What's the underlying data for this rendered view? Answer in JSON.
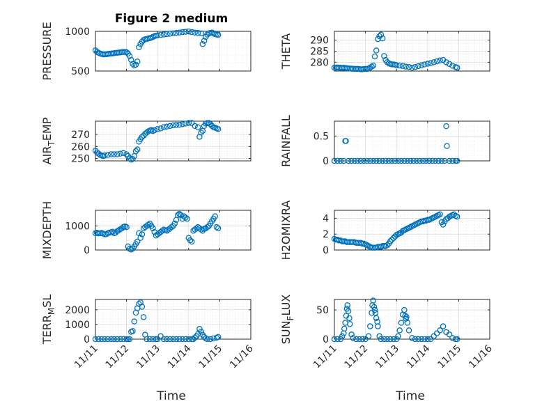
{
  "figure_title": "Figure 2 medium",
  "colors": {
    "marker": "#0072BD",
    "axes": "#262626"
  },
  "x_ticks": [
    "11/11",
    "11/12",
    "11/13",
    "11/14",
    "11/15",
    "11/16"
  ],
  "x_label": "Time",
  "chart_data": [
    {
      "type": "scatter",
      "ylabel": "PRESSURE",
      "ylim": [
        500,
        1000
      ],
      "yticks": [
        500,
        1000
      ],
      "x": [
        11.0,
        11.05,
        11.1,
        11.15,
        11.2,
        11.25,
        11.3,
        11.35,
        11.4,
        11.45,
        11.5,
        11.55,
        11.6,
        11.65,
        11.7,
        11.75,
        11.8,
        11.85,
        11.9,
        11.95,
        12.0,
        12.05,
        12.1,
        12.15,
        12.2,
        12.25,
        12.3,
        12.35,
        12.4,
        12.45,
        12.5,
        12.55,
        12.6,
        12.65,
        12.7,
        12.75,
        12.8,
        12.85,
        12.9,
        12.95,
        13.0,
        13.1,
        13.2,
        13.3,
        13.4,
        13.5,
        13.6,
        13.7,
        13.8,
        13.9,
        14.0,
        14.1,
        14.2,
        14.3,
        14.4,
        14.45,
        14.5,
        14.55,
        14.6,
        14.65,
        14.7,
        14.75,
        14.8,
        14.85,
        14.9,
        14.95
      ],
      "y": [
        760,
        740,
        730,
        720,
        715,
        710,
        710,
        712,
        715,
        718,
        720,
        722,
        725,
        728,
        730,
        732,
        735,
        738,
        740,
        740,
        738,
        720,
        690,
        640,
        590,
        570,
        580,
        620,
        800,
        840,
        870,
        890,
        900,
        905,
        910,
        915,
        920,
        930,
        940,
        945,
        950,
        955,
        960,
        965,
        970,
        975,
        980,
        985,
        990,
        995,
        998,
        990,
        985,
        980,
        975,
        840,
        880,
        930,
        960,
        975,
        980,
        985,
        975,
        965,
        960,
        955
      ],
      "grid_minor": true
    },
    {
      "type": "scatter",
      "ylabel": "THETA",
      "ylim": [
        276,
        294
      ],
      "yticks": [
        280,
        285,
        290
      ],
      "x": [
        11.0,
        11.05,
        11.1,
        11.15,
        11.2,
        11.25,
        11.3,
        11.35,
        11.4,
        11.45,
        11.5,
        11.55,
        11.6,
        11.65,
        11.7,
        11.75,
        11.8,
        11.85,
        11.9,
        11.95,
        12.0,
        12.05,
        12.1,
        12.15,
        12.2,
        12.25,
        12.3,
        12.35,
        12.4,
        12.45,
        12.5,
        12.55,
        12.6,
        12.65,
        12.7,
        12.75,
        12.8,
        12.85,
        12.9,
        12.95,
        13.0,
        13.1,
        13.2,
        13.3,
        13.4,
        13.5,
        13.6,
        13.7,
        13.8,
        13.9,
        14.0,
        14.1,
        14.2,
        14.3,
        14.4,
        14.5,
        14.6,
        14.7,
        14.8,
        14.9,
        14.95
      ],
      "y": [
        277.5,
        277.5,
        277.6,
        277.5,
        277.5,
        277.4,
        277.5,
        277.4,
        277.3,
        277.2,
        277.1,
        277.1,
        277.0,
        277.0,
        277.0,
        277.0,
        276.9,
        276.8,
        276.8,
        276.9,
        277.0,
        276.9,
        277.2,
        277.5,
        278.0,
        278.5,
        282.6,
        285.3,
        290.5,
        291.8,
        292.5,
        290.8,
        282.8,
        281.0,
        280.0,
        279.5,
        279.2,
        279.0,
        279.0,
        278.9,
        278.6,
        278.5,
        278.3,
        278.0,
        277.8,
        277.5,
        277.8,
        278.2,
        278.6,
        279.0,
        279.3,
        279.6,
        280.0,
        280.4,
        280.8,
        281.0,
        280.0,
        279.2,
        278.4,
        277.8,
        277.5
      ],
      "grid_minor": true
    },
    {
      "type": "scatter",
      "ylabel": "AIR_TEMP",
      "ylim": [
        248,
        281
      ],
      "yticks": [
        250,
        260,
        270
      ],
      "x": [
        11.0,
        11.05,
        11.1,
        11.15,
        11.2,
        11.25,
        11.3,
        11.4,
        11.5,
        11.6,
        11.7,
        11.8,
        11.9,
        12.0,
        12.05,
        12.1,
        12.15,
        12.2,
        12.25,
        12.3,
        12.35,
        12.4,
        12.45,
        12.5,
        12.55,
        12.6,
        12.65,
        12.7,
        12.75,
        12.8,
        12.85,
        12.9,
        13.0,
        13.1,
        13.2,
        13.3,
        13.4,
        13.5,
        13.6,
        13.7,
        13.8,
        13.9,
        14.0,
        14.1,
        14.2,
        14.3,
        14.35,
        14.4,
        14.45,
        14.5,
        14.55,
        14.6,
        14.65,
        14.7,
        14.75,
        14.8,
        14.85,
        14.9,
        14.95
      ],
      "y": [
        256.5,
        255,
        254,
        253,
        252.5,
        252,
        252.5,
        253,
        253.5,
        253.5,
        253.5,
        254,
        254.5,
        253.5,
        252,
        250,
        249,
        249.5,
        252,
        256,
        257.5,
        264,
        266,
        268,
        269,
        270.5,
        271.5,
        272.5,
        273.2,
        273.6,
        272.8,
        273.5,
        274.5,
        275,
        276,
        276.5,
        277,
        277.5,
        277.8,
        278,
        278.5,
        279,
        279.5,
        279.5,
        277,
        276,
        268,
        271.5,
        273,
        277,
        279,
        279.5,
        279.5,
        278.5,
        277,
        276,
        275.5,
        275,
        274.5
      ],
      "grid_minor": true
    },
    {
      "type": "scatter",
      "ylabel": "RAINFALL",
      "ylim": [
        0,
        0.8
      ],
      "yticks": [
        0,
        0.5
      ],
      "x": [
        11.0,
        11.1,
        11.2,
        11.3,
        11.35,
        11.37,
        11.45,
        11.55,
        11.65,
        11.75,
        11.85,
        11.95,
        12.05,
        12.15,
        12.25,
        12.35,
        12.45,
        12.55,
        12.65,
        12.75,
        12.85,
        12.95,
        13.05,
        13.15,
        13.25,
        13.35,
        13.45,
        13.55,
        13.65,
        13.75,
        13.85,
        13.95,
        14.05,
        14.15,
        14.25,
        14.35,
        14.45,
        14.55,
        14.6,
        14.62,
        14.7,
        14.8,
        14.9,
        14.95
      ],
      "y": [
        0,
        0,
        0,
        0,
        0.4,
        0.4,
        0,
        0,
        0,
        0,
        0,
        0,
        0,
        0,
        0,
        0,
        0,
        0,
        0,
        0,
        0,
        0,
        0,
        0,
        0,
        0,
        0,
        0,
        0,
        0,
        0,
        0,
        0,
        0,
        0,
        0,
        0,
        0,
        0.7,
        0.3,
        0,
        0,
        0,
        0
      ],
      "grid_minor": true
    },
    {
      "type": "scatter",
      "ylabel": "MIXDEPTH",
      "ylim": [
        0,
        1650
      ],
      "yticks": [
        0,
        1000
      ],
      "x": [
        11.0,
        11.05,
        11.1,
        11.15,
        11.2,
        11.25,
        11.3,
        11.35,
        11.4,
        11.45,
        11.5,
        11.55,
        11.6,
        11.65,
        11.7,
        11.75,
        11.8,
        11.85,
        11.9,
        11.95,
        12.0,
        12.05,
        12.1,
        12.15,
        12.2,
        12.25,
        12.3,
        12.35,
        12.4,
        12.45,
        12.5,
        12.55,
        12.6,
        12.65,
        12.7,
        12.75,
        12.8,
        12.85,
        12.9,
        12.95,
        13.0,
        13.05,
        13.1,
        13.15,
        13.2,
        13.25,
        13.3,
        13.35,
        13.4,
        13.45,
        13.5,
        13.55,
        13.6,
        13.65,
        13.7,
        13.75,
        13.8,
        13.85,
        13.9,
        13.95,
        14.0,
        14.05,
        14.1,
        14.15,
        14.2,
        14.25,
        14.3,
        14.35,
        14.4,
        14.45,
        14.5,
        14.55,
        14.6,
        14.65,
        14.7,
        14.75,
        14.8,
        14.85,
        14.9,
        14.95
      ],
      "y": [
        700,
        720,
        690,
        700,
        710,
        680,
        650,
        660,
        700,
        720,
        740,
        760,
        700,
        720,
        780,
        820,
        860,
        900,
        960,
        980,
        950,
        150,
        50,
        20,
        60,
        150,
        250,
        350,
        700,
        500,
        650,
        900,
        950,
        1000,
        1050,
        1100,
        1000,
        900,
        750,
        600,
        650,
        700,
        750,
        800,
        850,
        820,
        800,
        850,
        900,
        950,
        1000,
        1100,
        1250,
        1450,
        1500,
        1450,
        1300,
        1400,
        1350,
        1300,
        500,
        400,
        350,
        800,
        850,
        900,
        950,
        900,
        850,
        800,
        880,
        900,
        950,
        1000,
        1100,
        1200,
        1300,
        1400,
        950,
        900
      ],
      "grid_minor": true
    },
    {
      "type": "scatter",
      "ylabel": "H2OMIXRA",
      "ylim": [
        0,
        5
      ],
      "yticks": [
        0,
        2,
        4
      ],
      "x": [
        11.0,
        11.05,
        11.1,
        11.15,
        11.2,
        11.25,
        11.3,
        11.35,
        11.4,
        11.45,
        11.5,
        11.55,
        11.6,
        11.65,
        11.7,
        11.75,
        11.8,
        11.85,
        11.9,
        11.95,
        12.0,
        12.05,
        12.1,
        12.15,
        12.2,
        12.25,
        12.3,
        12.35,
        12.4,
        12.45,
        12.5,
        12.55,
        12.6,
        12.65,
        12.7,
        12.75,
        12.8,
        12.85,
        12.9,
        12.95,
        13.0,
        13.05,
        13.1,
        13.15,
        13.2,
        13.25,
        13.3,
        13.35,
        13.4,
        13.45,
        13.5,
        13.55,
        13.6,
        13.65,
        13.7,
        13.75,
        13.8,
        13.85,
        13.9,
        13.95,
        14.0,
        14.05,
        14.1,
        14.15,
        14.2,
        14.25,
        14.3,
        14.35,
        14.4,
        14.45,
        14.5,
        14.55,
        14.6,
        14.65,
        14.7,
        14.75,
        14.8,
        14.85,
        14.9,
        14.95
      ],
      "y": [
        1.4,
        1.3,
        1.3,
        1.2,
        1.2,
        1.1,
        1.1,
        1.1,
        1.0,
        1.0,
        1.0,
        1.0,
        1.0,
        1.0,
        0.9,
        0.9,
        0.9,
        0.9,
        0.8,
        0.8,
        0.7,
        0.6,
        0.5,
        0.4,
        0.3,
        0.3,
        0.3,
        0.3,
        0.4,
        0.4,
        0.4,
        0.5,
        0.5,
        0.5,
        0.6,
        0.8,
        1.1,
        1.3,
        1.5,
        1.7,
        1.9,
        2.0,
        2.1,
        2.2,
        2.4,
        2.5,
        2.6,
        2.7,
        2.8,
        2.9,
        3.0,
        3.1,
        3.2,
        3.3,
        3.4,
        3.5,
        3.6,
        3.6,
        3.7,
        3.7,
        3.8,
        3.8,
        3.9,
        4.0,
        4.1,
        4.2,
        4.3,
        4.4,
        4.5,
        3.5,
        3.2,
        3.6,
        3.9,
        4.0,
        4.2,
        4.3,
        4.4,
        4.5,
        4.3,
        4.2
      ],
      "grid_minor": true
    },
    {
      "type": "scatter",
      "ylabel": "TERR_MSL",
      "ylim": [
        0,
        2700
      ],
      "yticks": [
        0,
        1000,
        2000
      ],
      "x": [
        11.0,
        11.1,
        11.2,
        11.3,
        11.4,
        11.5,
        11.6,
        11.7,
        11.8,
        11.9,
        12.0,
        12.05,
        12.1,
        12.15,
        12.2,
        12.25,
        12.3,
        12.35,
        12.4,
        12.45,
        12.5,
        12.55,
        12.6,
        12.65,
        12.75,
        12.85,
        12.95,
        13.0,
        13.1,
        13.2,
        13.3,
        13.4,
        13.5,
        13.6,
        13.7,
        13.8,
        13.9,
        14.0,
        14.1,
        14.15,
        14.2,
        14.25,
        14.3,
        14.35,
        14.4,
        14.45,
        14.5,
        14.55,
        14.6,
        14.7,
        14.8,
        14.9,
        14.95
      ],
      "y": [
        0,
        0,
        0,
        0,
        0,
        0,
        0,
        0,
        0,
        0,
        0,
        0,
        0,
        500,
        550,
        1200,
        1800,
        2100,
        2400,
        2500,
        2200,
        1500,
        300,
        0,
        0,
        0,
        0,
        0,
        200,
        0,
        0,
        0,
        0,
        0,
        0,
        0,
        0,
        0,
        0,
        0,
        100,
        200,
        350,
        700,
        500,
        300,
        150,
        50,
        0,
        0,
        50,
        100,
        150
      ],
      "grid_minor": true
    },
    {
      "type": "scatter",
      "ylabel": "SUN_FLUX",
      "ylim": [
        0,
        68
      ],
      "yticks": [
        0,
        50
      ],
      "x": [
        11.0,
        11.1,
        11.2,
        11.25,
        11.3,
        11.32,
        11.35,
        11.38,
        11.4,
        11.42,
        11.45,
        11.48,
        11.5,
        11.55,
        11.6,
        11.7,
        11.8,
        11.9,
        12.0,
        12.1,
        12.15,
        12.2,
        12.22,
        12.25,
        12.28,
        12.3,
        12.32,
        12.35,
        12.38,
        12.4,
        12.45,
        12.5,
        12.6,
        12.7,
        12.8,
        12.9,
        13.0,
        13.05,
        13.1,
        13.15,
        13.2,
        13.25,
        13.28,
        13.3,
        13.32,
        13.35,
        13.4,
        13.5,
        13.6,
        13.7,
        13.8,
        13.9,
        14.0,
        14.1,
        14.2,
        14.3,
        14.4,
        14.5,
        14.6,
        14.7,
        14.8,
        14.9,
        14.95
      ],
      "y": [
        0,
        0,
        0,
        5,
        10,
        18,
        28,
        40,
        52,
        58,
        48,
        36,
        26,
        8,
        2,
        0,
        0,
        0,
        0,
        5,
        22,
        45,
        58,
        66,
        55,
        50,
        45,
        36,
        30,
        22,
        5,
        0,
        0,
        0,
        0,
        0,
        0,
        5,
        15,
        28,
        42,
        50,
        40,
        35,
        38,
        28,
        15,
        2,
        0,
        0,
        0,
        0,
        0,
        0,
        5,
        10,
        15,
        22,
        12,
        8,
        2,
        0,
        0
      ],
      "grid_minor": true
    }
  ]
}
